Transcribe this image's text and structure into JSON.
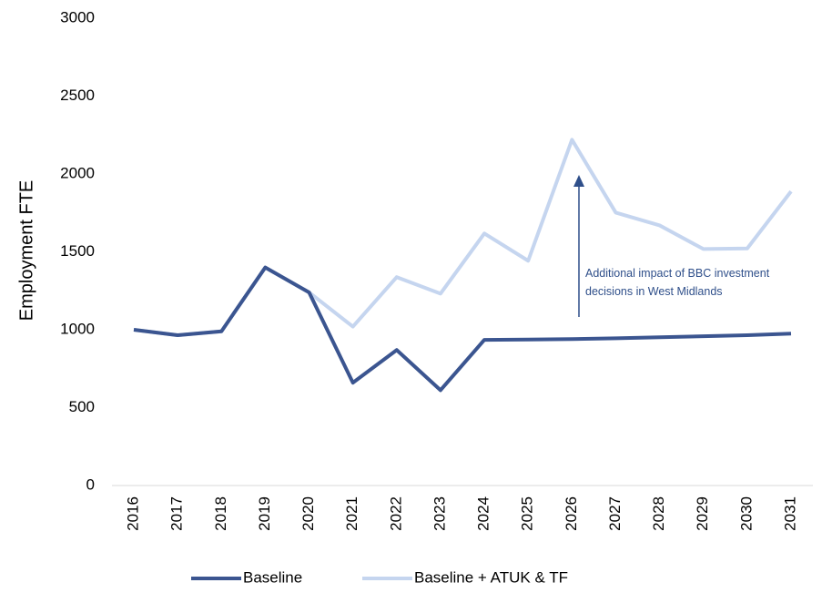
{
  "chart_data": {
    "type": "line",
    "y_label": "Employment FTE",
    "categories": [
      "2016",
      "2017",
      "2018",
      "2019",
      "2020",
      "2021",
      "2022",
      "2023",
      "2024",
      "2025",
      "2026",
      "2027",
      "2028",
      "2029",
      "2030",
      "2031"
    ],
    "series": [
      {
        "name": "Baseline",
        "color": "#3b5590",
        "values": [
          1000,
          965,
          990,
          1400,
          1240,
          660,
          870,
          612,
          935,
          937,
          940,
          945,
          952,
          958,
          965,
          975
        ]
      },
      {
        "name": "Baseline + ATUK & TF",
        "color": "#c5d5ef",
        "values": [
          1000,
          965,
          990,
          1400,
          1240,
          1020,
          1338,
          1232,
          1618,
          1443,
          2220,
          1752,
          1670,
          1518,
          1522,
          1888
        ]
      }
    ],
    "ylim": [
      0,
      3000
    ],
    "yticks": [
      0,
      500,
      1000,
      1500,
      2000,
      2500,
      3000
    ],
    "annotation": {
      "lines": [
        "Additional impact of BBC investment",
        "decisions in West Midlands"
      ]
    },
    "legend": "bottom",
    "grid": false
  }
}
